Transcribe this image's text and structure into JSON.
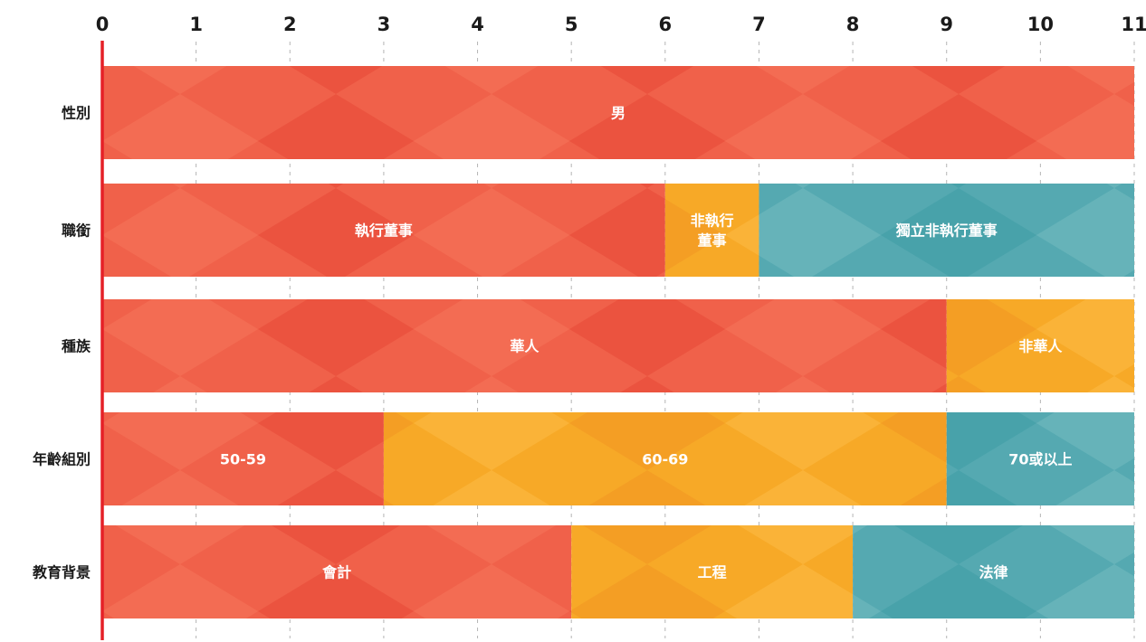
{
  "chart_data": {
    "type": "bar",
    "orientation": "horizontal",
    "stacked": true,
    "title": "",
    "xlabel": "",
    "ylabel": "",
    "xlim": [
      0,
      11
    ],
    "x_ticks": [
      0,
      1,
      2,
      3,
      4,
      5,
      6,
      7,
      8,
      9,
      10,
      11
    ],
    "x_axis_position": "top",
    "grid": "vertical-dashed",
    "legend": "none",
    "colors": {
      "red": "#ef5f47",
      "orange": "#f5a623",
      "teal": "#4fa8b0",
      "axis": "#e52027"
    },
    "categories": [
      "性別",
      "職銜",
      "種族",
      "年齡組別",
      "教育背景"
    ],
    "rows": [
      {
        "category": "性別",
        "segments": [
          {
            "label": [
              "男"
            ],
            "value": 11,
            "color": "red"
          }
        ]
      },
      {
        "category": "職銜",
        "segments": [
          {
            "label": [
              "執行董事"
            ],
            "value": 6,
            "color": "red"
          },
          {
            "label": [
              "非執行",
              "董事"
            ],
            "value": 1,
            "color": "orange"
          },
          {
            "label": [
              "獨立非執行董事"
            ],
            "value": 4,
            "color": "teal"
          }
        ]
      },
      {
        "category": "種族",
        "segments": [
          {
            "label": [
              "華人"
            ],
            "value": 9,
            "color": "red"
          },
          {
            "label": [
              "非華人"
            ],
            "value": 2,
            "color": "orange"
          }
        ]
      },
      {
        "category": "年齡組別",
        "segments": [
          {
            "label": [
              "50-59"
            ],
            "value": 3,
            "color": "red"
          },
          {
            "label": [
              "60-69"
            ],
            "value": 6,
            "color": "orange"
          },
          {
            "label": [
              "70或以上"
            ],
            "value": 2,
            "color": "teal"
          }
        ]
      },
      {
        "category": "教育背景",
        "segments": [
          {
            "label": [
              "會計"
            ],
            "value": 5,
            "color": "red"
          },
          {
            "label": [
              "工程"
            ],
            "value": 3,
            "color": "orange"
          },
          {
            "label": [
              "法律"
            ],
            "value": 3,
            "color": "teal"
          }
        ]
      }
    ]
  }
}
